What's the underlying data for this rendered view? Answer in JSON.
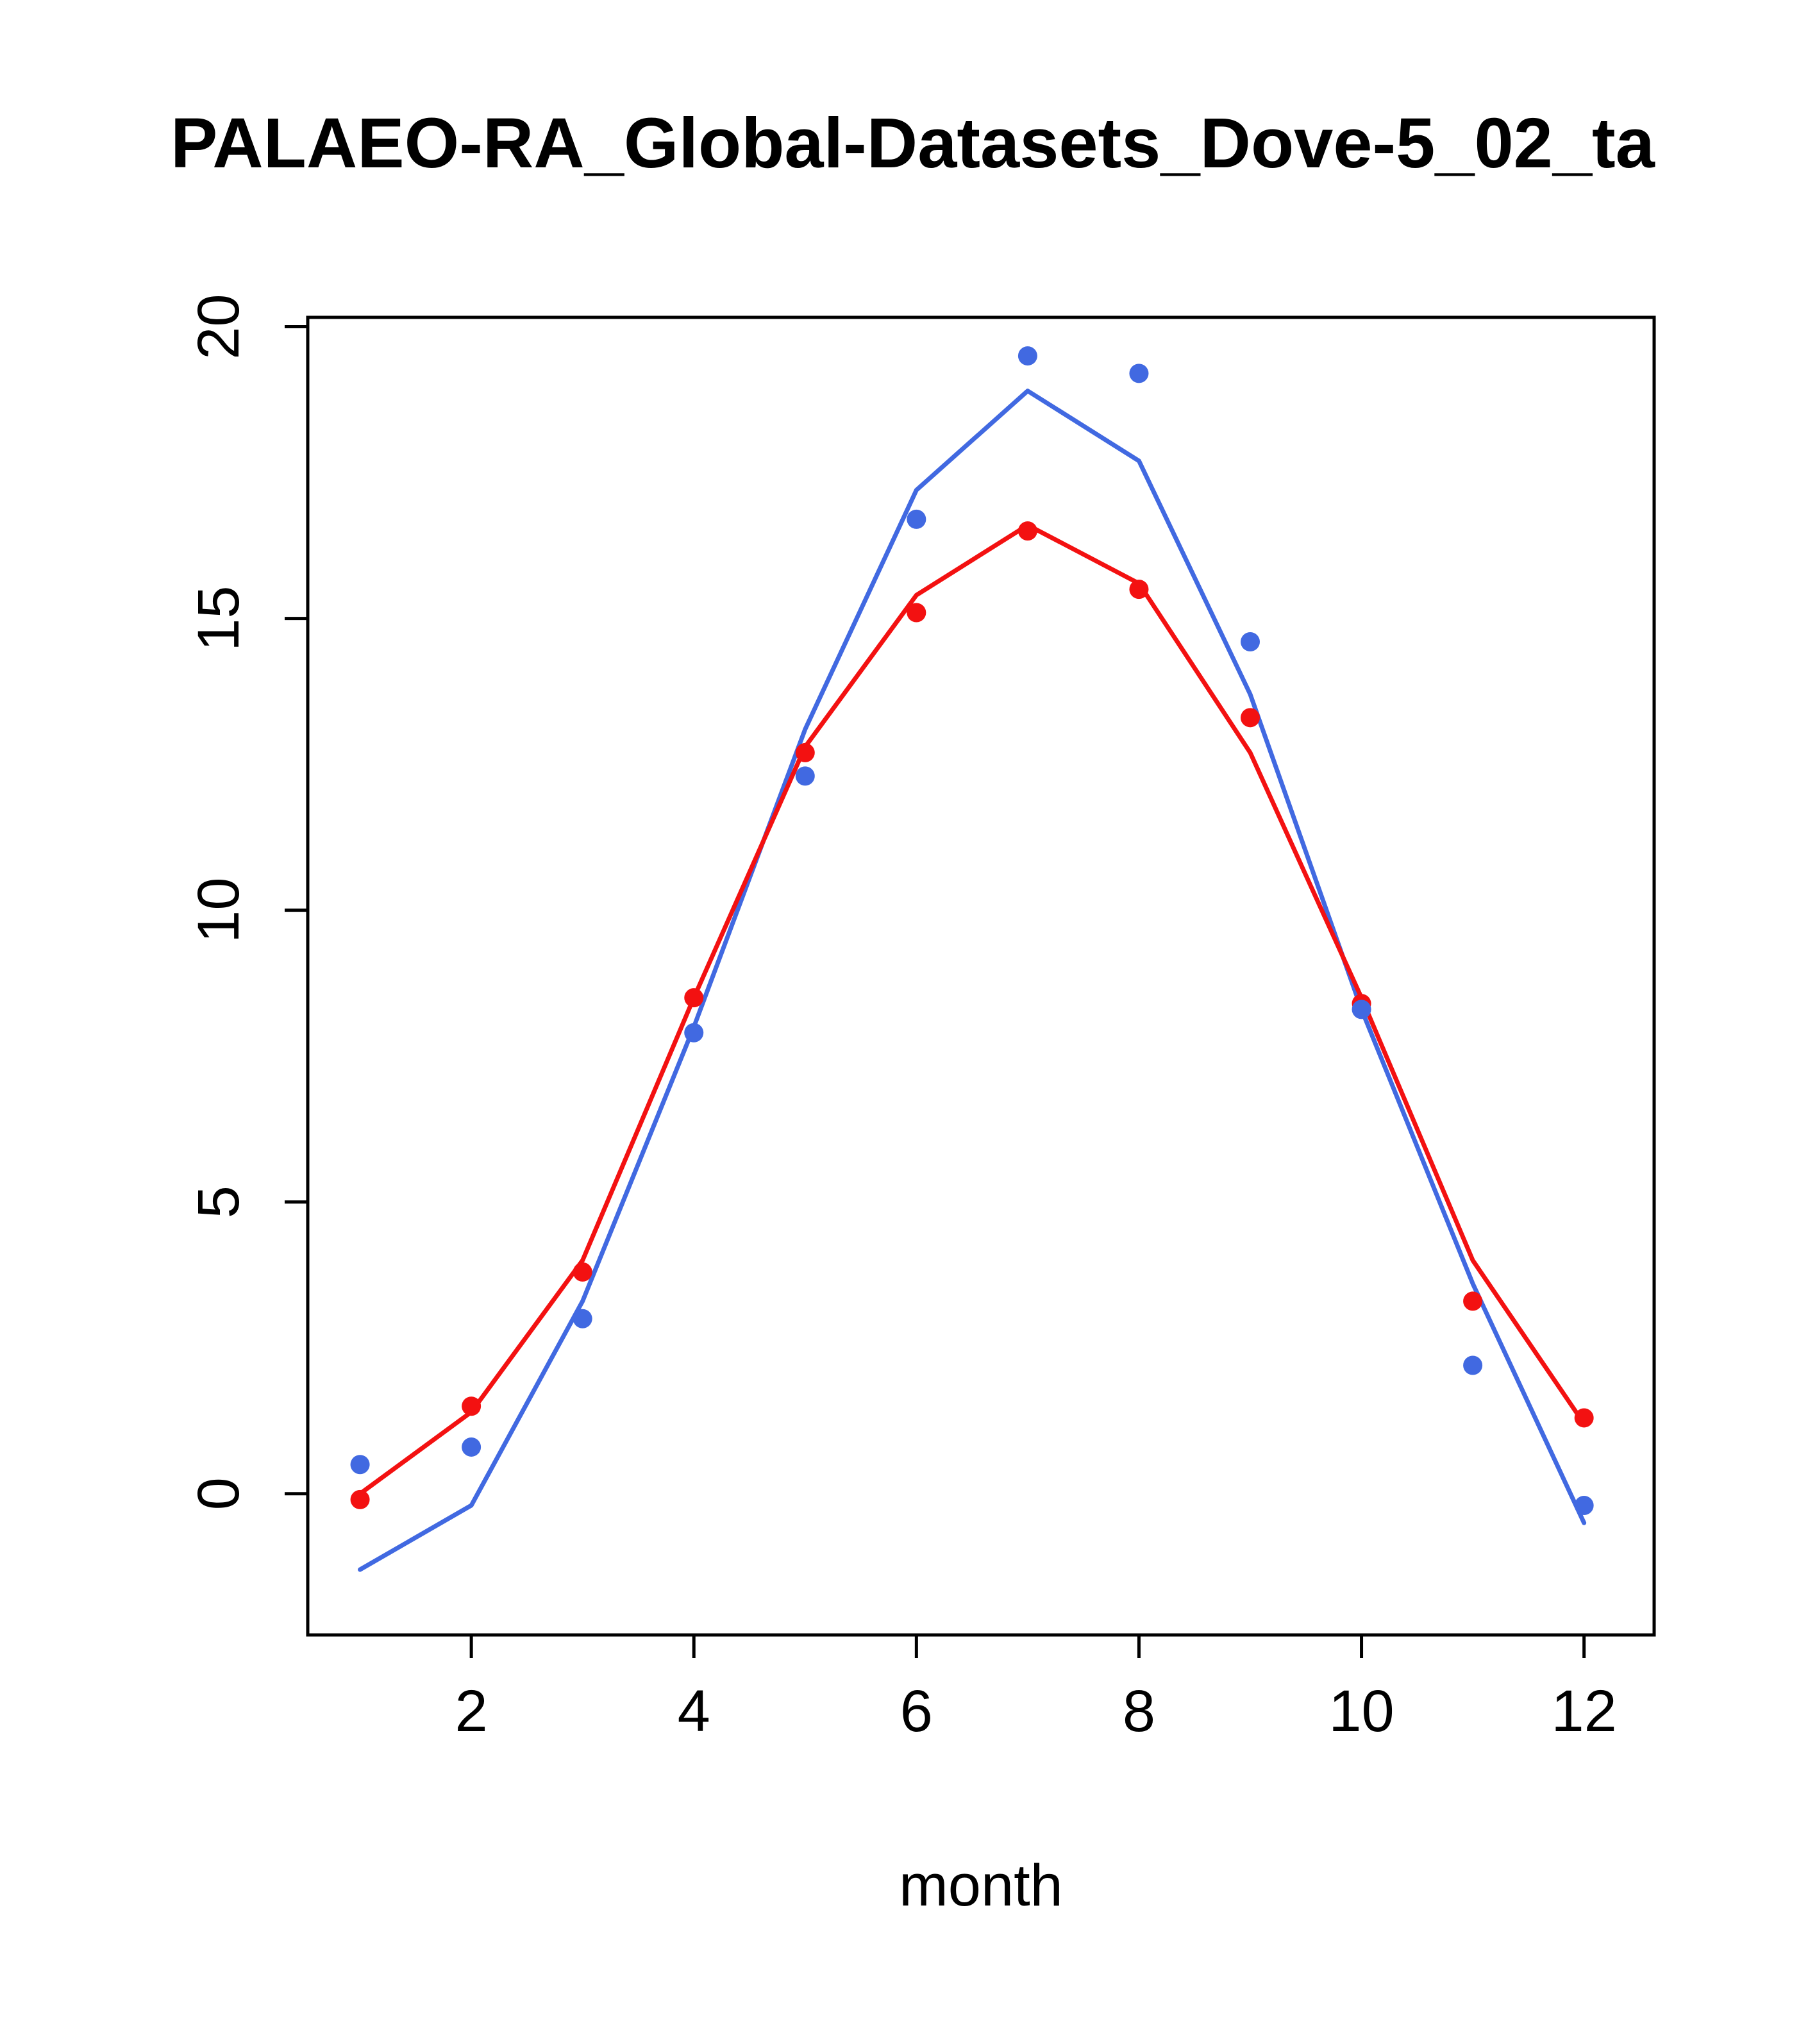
{
  "title": "PALAEO-RA_Global-Datasets_Dove-5_02_ta",
  "chart_data": {
    "type": "line",
    "title": "PALAEO-RA_Global-Datasets_Dove-5_02_ta",
    "xlabel": "month",
    "ylabel": "",
    "x": [
      1,
      2,
      3,
      4,
      5,
      6,
      7,
      8,
      9,
      10,
      11,
      12
    ],
    "xticks": [
      2,
      4,
      6,
      8,
      10,
      12
    ],
    "yticks": [
      0,
      5,
      10,
      15,
      20
    ],
    "xlim": [
      0.53,
      12.63
    ],
    "ylim": [
      -2.42,
      20.16
    ],
    "grid": false,
    "legend": false,
    "series": [
      {
        "name": "blue-line",
        "style": "line",
        "color": "#4169E1",
        "values": [
          -1.3,
          -0.2,
          3.3,
          8.0,
          13.1,
          17.2,
          18.9,
          17.7,
          13.7,
          8.3,
          3.6,
          -0.5
        ]
      },
      {
        "name": "red-line",
        "style": "line",
        "color": "#F31111",
        "values": [
          0.0,
          1.4,
          4.0,
          8.5,
          12.8,
          15.4,
          16.6,
          15.6,
          12.7,
          8.5,
          4.0,
          1.2
        ]
      },
      {
        "name": "red-points",
        "style": "points",
        "color": "#F31111",
        "values": [
          -0.1,
          1.5,
          3.8,
          8.5,
          12.7,
          15.1,
          16.5,
          15.5,
          13.3,
          8.4,
          3.3,
          1.3
        ]
      },
      {
        "name": "blue-points",
        "style": "points",
        "color": "#4169E1",
        "values": [
          0.5,
          0.8,
          3.0,
          7.9,
          12.3,
          16.7,
          19.5,
          19.2,
          14.6,
          8.3,
          2.2,
          -0.2
        ]
      }
    ]
  },
  "colors": {
    "background": "#FFFFFF",
    "axis": "#000000",
    "blue_series": "#4169E1",
    "red_series": "#F31111"
  }
}
